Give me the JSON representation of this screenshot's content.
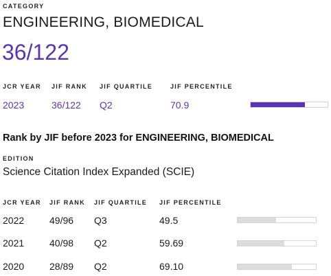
{
  "category": {
    "label": "CATEGORY",
    "name": "ENGINEERING, BIOMEDICAL",
    "rank": "36/122"
  },
  "current": {
    "headers": {
      "year": "JCR YEAR",
      "rank": "JIF RANK",
      "quartile": "JIF QUARTILE",
      "percentile": "JIF PERCENTILE"
    },
    "row": {
      "year": "2023",
      "rank": "36/122",
      "quartile": "Q2",
      "percentile": "70.9",
      "percentile_value": 70.9
    },
    "bar_color": "#5b34b3"
  },
  "history": {
    "title": "Rank by JIF before 2023 for ENGINEERING, BIOMEDICAL",
    "edition_label": "EDITION",
    "edition_value": "Science Citation Index Expanded (SCIE)",
    "headers": {
      "year": "JCR YEAR",
      "rank": "JIF RANK",
      "quartile": "JIF QUARTILE",
      "percentile": "JIF PERCENTILE"
    },
    "bar_color": "#dcdcdc",
    "rows": [
      {
        "year": "2022",
        "rank": "49/96",
        "quartile": "Q3",
        "percentile": "49.5",
        "percentile_value": 49.5
      },
      {
        "year": "2021",
        "rank": "40/98",
        "quartile": "Q2",
        "percentile": "59.69",
        "percentile_value": 59.69
      },
      {
        "year": "2020",
        "rank": "28/89",
        "quartile": "Q2",
        "percentile": "69.10",
        "percentile_value": 69.1
      }
    ]
  }
}
